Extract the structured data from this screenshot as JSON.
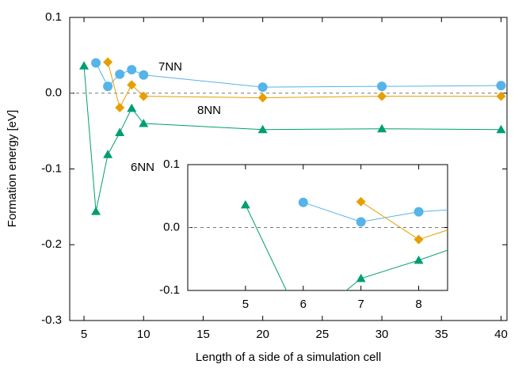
{
  "chart_data": {
    "type": "line",
    "x_label": "Length of a side of a simulation cell",
    "y_label": "Formation energy [eV]",
    "xlim": [
      3.8,
      40.5
    ],
    "ylim": [
      -0.3,
      0.1
    ],
    "xticks": [
      5,
      10,
      15,
      20,
      25,
      30,
      35,
      40
    ],
    "yticks": [
      0.1,
      {
        "value": 0,
        "label": "0.0"
      },
      {
        "value": -0.1,
        "label": "-0.1"
      },
      {
        "value": -0.2,
        "label": "-0.2"
      },
      {
        "value": -0.3,
        "label": "-0.3"
      }
    ],
    "zero_line": true,
    "series": [
      {
        "name": "7NN",
        "color": "#56b4e9",
        "marker": "circle",
        "x": [
          6,
          7,
          8,
          9,
          10,
          20,
          30,
          40
        ],
        "values": [
          0.04,
          0.009,
          0.025,
          0.031,
          0.024,
          0.008,
          0.009,
          0.01
        ]
      },
      {
        "name": "8NN",
        "color": "#e69f00",
        "marker": "diamond",
        "x": [
          7,
          8,
          9,
          10,
          20,
          30,
          40
        ],
        "values": [
          0.041,
          -0.019,
          0.011,
          -0.004,
          -0.006,
          -0.004,
          -0.004
        ]
      },
      {
        "name": "6NN",
        "color": "#009e73",
        "marker": "triangle",
        "x": [
          5,
          6,
          7,
          8,
          9,
          10,
          20,
          30,
          40
        ],
        "values": [
          0.036,
          -0.156,
          -0.081,
          -0.052,
          -0.02,
          -0.04,
          -0.048,
          -0.047,
          -0.048
        ]
      }
    ],
    "inset": {
      "xlim": [
        4,
        8.5
      ],
      "ylim": [
        -0.1,
        0.1
      ],
      "xticks": [
        5,
        6,
        7,
        8
      ],
      "yticks": [
        0.1,
        {
          "value": 0,
          "label": "0.0"
        },
        {
          "value": -0.1,
          "label": "-0.1"
        }
      ]
    }
  }
}
